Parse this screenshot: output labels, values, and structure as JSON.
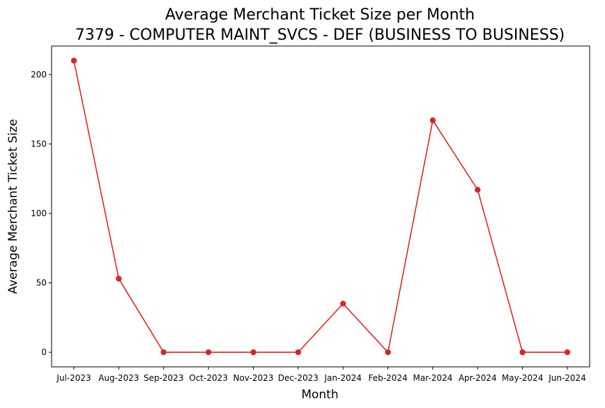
{
  "chart_data": {
    "type": "line",
    "title": "Average Merchant Ticket Size per Month",
    "subtitle": "7379 - COMPUTER MAINT_SVCS - DEF (BUSINESS TO BUSINESS)",
    "xlabel": "Month",
    "ylabel": "Average Merchant Ticket Size",
    "categories": [
      "Jul-2023",
      "Aug-2023",
      "Sep-2023",
      "Oct-2023",
      "Nov-2023",
      "Dec-2023",
      "Jan-2024",
      "Feb-2024",
      "Mar-2024",
      "Apr-2024",
      "May-2024",
      "Jun-2024"
    ],
    "series": [
      {
        "values": [
          210,
          53,
          0,
          0,
          0,
          0,
          35,
          0,
          167,
          117,
          0,
          0
        ],
        "color": "#d62728"
      }
    ],
    "yticks": [
      0,
      50,
      100,
      150,
      200
    ],
    "ylim": [
      -10.5,
      220.5
    ],
    "grid": false,
    "legend": false,
    "marker": "circle"
  }
}
